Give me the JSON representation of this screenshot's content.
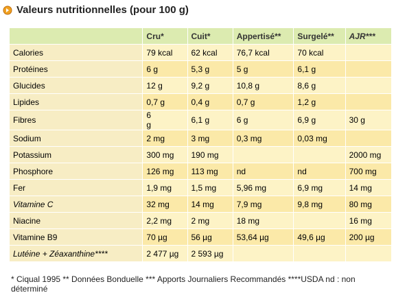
{
  "header": {
    "title": "Valeurs nutritionnelles (pour 100 g)"
  },
  "table": {
    "columns": [
      null,
      "Cru*",
      "Cuit*",
      "Appertisé**",
      "Surgelé**",
      "AJR***"
    ],
    "rows": [
      [
        "Calories",
        "79 kcal",
        "62 kcal",
        "76,7 kcal",
        "70 kcal",
        null
      ],
      [
        "Protéines",
        "6 g",
        "5,3 g",
        "5 g",
        "6,1 g",
        null
      ],
      [
        "Glucides",
        "12 g",
        "9,2 g",
        "10,8 g",
        "8,6 g",
        null
      ],
      [
        "Lipides",
        "0,7 g",
        "0,4 g",
        "0,7 g",
        "1,2 g",
        null
      ],
      [
        "Fibres",
        "6\ng",
        "6,1 g",
        "6 g",
        "6,9 g",
        "30 g"
      ],
      [
        "Sodium",
        "2 mg",
        "3 mg",
        "0,3 mg",
        "0,03 mg",
        null
      ],
      [
        "Potassium",
        "300 mg",
        "190 mg",
        null,
        null,
        "2000 mg"
      ],
      [
        "Phosphore",
        "126 mg",
        "113 mg",
        "nd",
        "nd",
        "700 mg"
      ],
      [
        "Fer",
        "1,9 mg",
        "1,5 mg",
        "5,96 mg",
        "6,9 mg",
        "14 mg"
      ],
      [
        "Vitamine C",
        "32 mg",
        "14 mg",
        "7,9 mg",
        "9,8 mg",
        "80 mg"
      ],
      [
        "Niacine",
        "2,2 mg",
        "2 mg",
        "18 mg",
        null,
        "16 mg"
      ],
      [
        "Vitamine B9",
        "70 µg",
        "56 µg",
        "53,64 µg",
        "49,6 µg",
        "200 µg"
      ],
      [
        "Lutéine + Zéaxanthine****",
        "2 477 µg",
        "2 593 µg",
        null,
        null,
        null
      ]
    ]
  },
  "footnote": "* Ciqual 1995 ** Données Bonduelle *** Apports Journaliers Recommandés ****USDA nd : non déterminé"
}
